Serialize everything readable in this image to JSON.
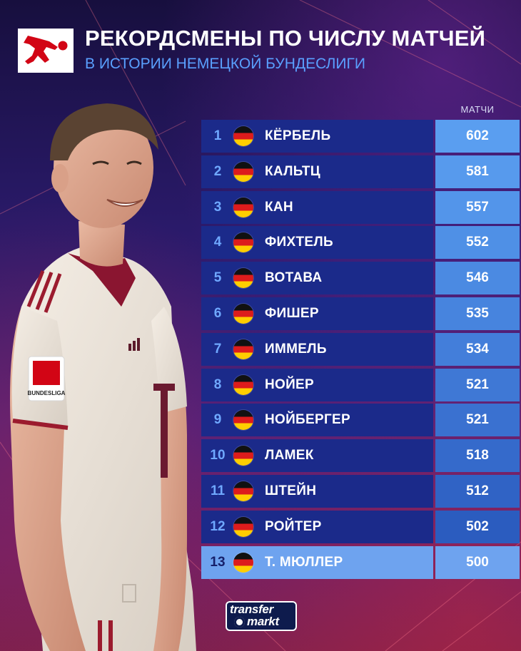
{
  "header": {
    "title": "РЕКОРДСМЕНЫ ПО ЧИСЛУ МАТЧЕЙ",
    "subtitle": "В ИСТОРИИ НЕМЕЦКОЙ БУНДЕСЛИГИ",
    "logo_icon": "bundesliga-logo-icon"
  },
  "table": {
    "column_header": "МАТЧИ",
    "flag_icon": "germany-flag-icon",
    "rows": [
      {
        "rank": "1",
        "name": "КЁРБЕЛЬ",
        "matches": "602"
      },
      {
        "rank": "2",
        "name": "КАЛЬТЦ",
        "matches": "581"
      },
      {
        "rank": "3",
        "name": "КАН",
        "matches": "557"
      },
      {
        "rank": "4",
        "name": "ФИХТЕЛЬ",
        "matches": "552"
      },
      {
        "rank": "5",
        "name": "ВОТАВА",
        "matches": "546"
      },
      {
        "rank": "6",
        "name": "ФИШЕР",
        "matches": "535"
      },
      {
        "rank": "7",
        "name": "ИММЕЛЬ",
        "matches": "534"
      },
      {
        "rank": "8",
        "name": "НОЙЕР",
        "matches": "521"
      },
      {
        "rank": "9",
        "name": "НОЙБЕРГЕР",
        "matches": "521"
      },
      {
        "rank": "10",
        "name": "ЛАМЕК",
        "matches": "518"
      },
      {
        "rank": "11",
        "name": "ШТЕЙН",
        "matches": "512"
      },
      {
        "rank": "12",
        "name": "РОЙТЕР",
        "matches": "502"
      },
      {
        "rank": "13",
        "name": "Т. МЮЛЛЕР",
        "matches": "500"
      }
    ]
  },
  "value_cell_colors": [
    "#5a9ef0",
    "#579aed",
    "#5395ea",
    "#4f90e6",
    "#4b8ae2",
    "#4784de",
    "#437eda",
    "#3f78d5",
    "#3a71d0",
    "#356acb",
    "#3063c5",
    "#2b5cbf",
    "#6ea3ef"
  ],
  "highlight_color": "#6ea3ef",
  "brand": {
    "line1": "transfer",
    "line2": "markt"
  },
  "badge": {
    "sleeve_text": "BUNDESLIGA"
  }
}
